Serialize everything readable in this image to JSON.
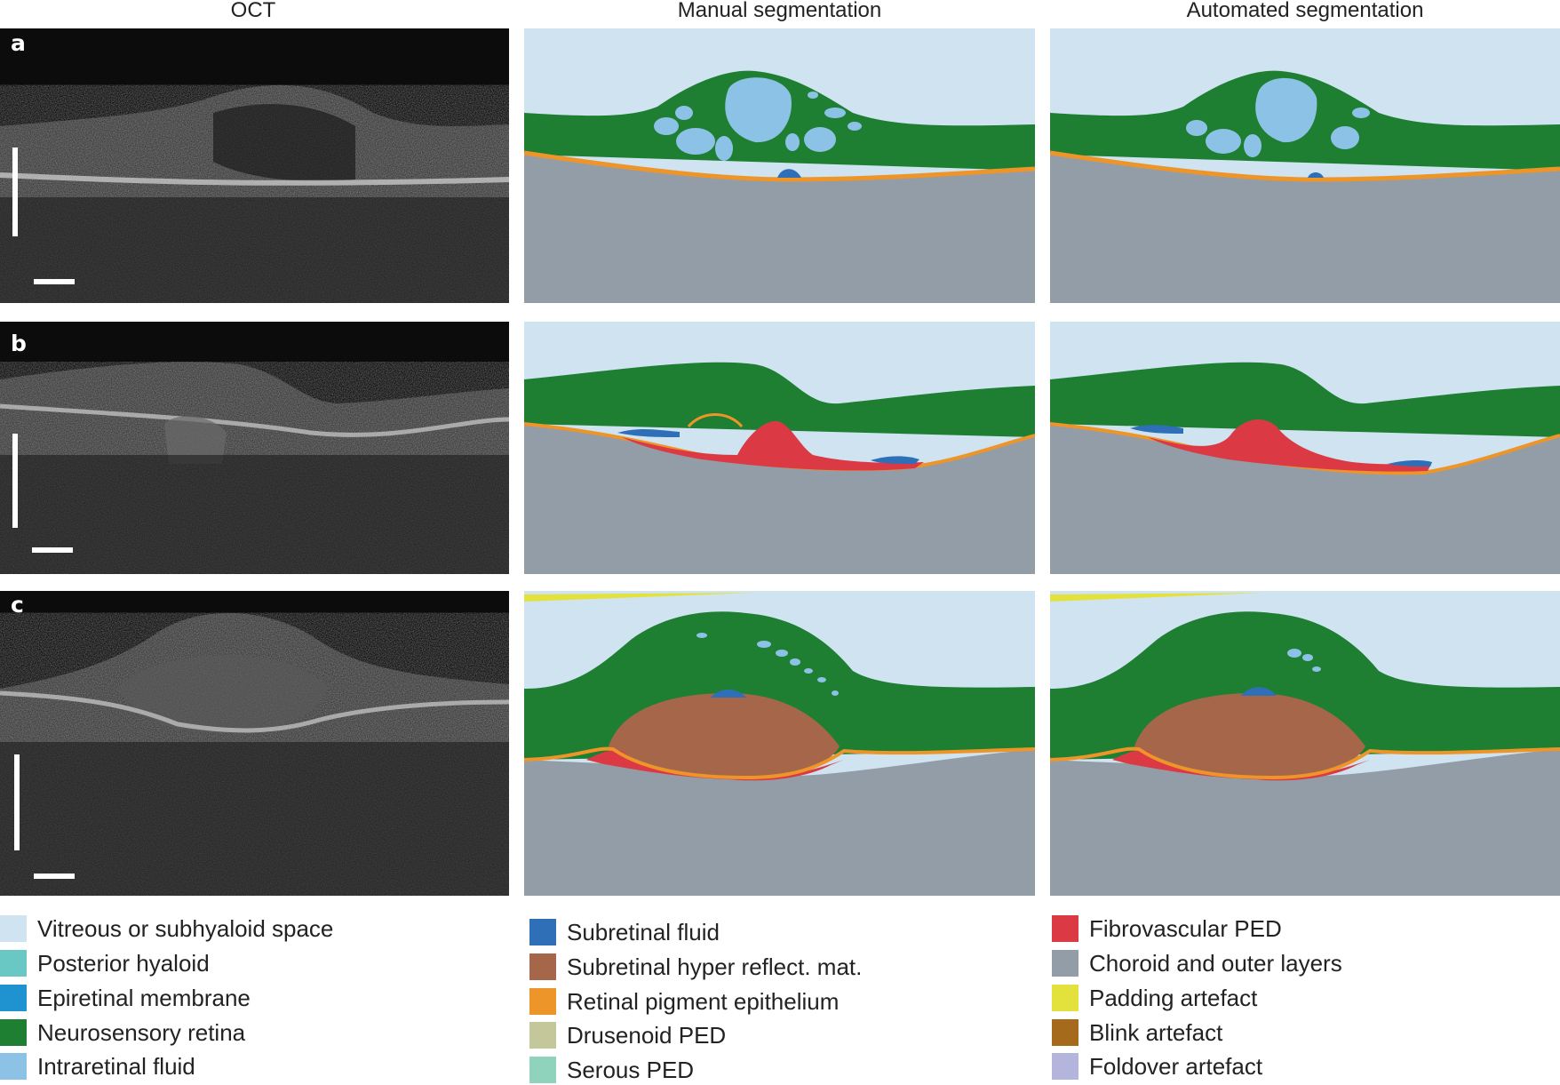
{
  "columns": {
    "oct": "OCT",
    "manual": "Manual segmentation",
    "auto": "Automated segmentation"
  },
  "rows": [
    "a",
    "b",
    "c"
  ],
  "colors": {
    "vitreous": "#cfe4f0",
    "posterior_hyaloid": "#6ac8c4",
    "epiretinal": "#1f93cf",
    "retina": "#1e7f33",
    "intraretinal": "#8cc2e6",
    "subretinal_fluid": "#2f6fb8",
    "shrm": "#a5664a",
    "rpe": "#ee9529",
    "drusenoid": "#c4c79a",
    "serous": "#8fd3bd",
    "fibrovascular": "#db3a45",
    "choroid": "#939da7",
    "padding": "#e3e23c",
    "blink": "#a56a1c",
    "foldover": "#b3b5dd"
  },
  "legend": {
    "col1": [
      {
        "label": "Vitreous or subhyaloid space",
        "color": "#cfe4f0"
      },
      {
        "label": "Posterior hyaloid",
        "color": "#6ac8c4"
      },
      {
        "label": "Epiretinal membrane",
        "color": "#1f93cf"
      },
      {
        "label": "Neurosensory retina",
        "color": "#1e7f33"
      },
      {
        "label": "Intraretinal fluid",
        "color": "#8cc2e6"
      }
    ],
    "col2": [
      {
        "label": "Subretinal fluid",
        "color": "#2f6fb8"
      },
      {
        "label": "Subretinal hyper reflect. mat.",
        "color": "#a5664a"
      },
      {
        "label": "Retinal pigment epithelium",
        "color": "#ee9529"
      },
      {
        "label": "Drusenoid PED",
        "color": "#c4c79a"
      },
      {
        "label": "Serous PED",
        "color": "#8fd3bd"
      }
    ],
    "col3": [
      {
        "label": "Fibrovascular PED",
        "color": "#db3a45"
      },
      {
        "label": "Choroid and outer layers",
        "color": "#939da7"
      },
      {
        "label": "Padding artefact",
        "color": "#e3e23c"
      },
      {
        "label": "Blink artefact",
        "color": "#a56a1c"
      },
      {
        "label": "Foldover artefact",
        "color": "#b3b5dd"
      }
    ]
  }
}
